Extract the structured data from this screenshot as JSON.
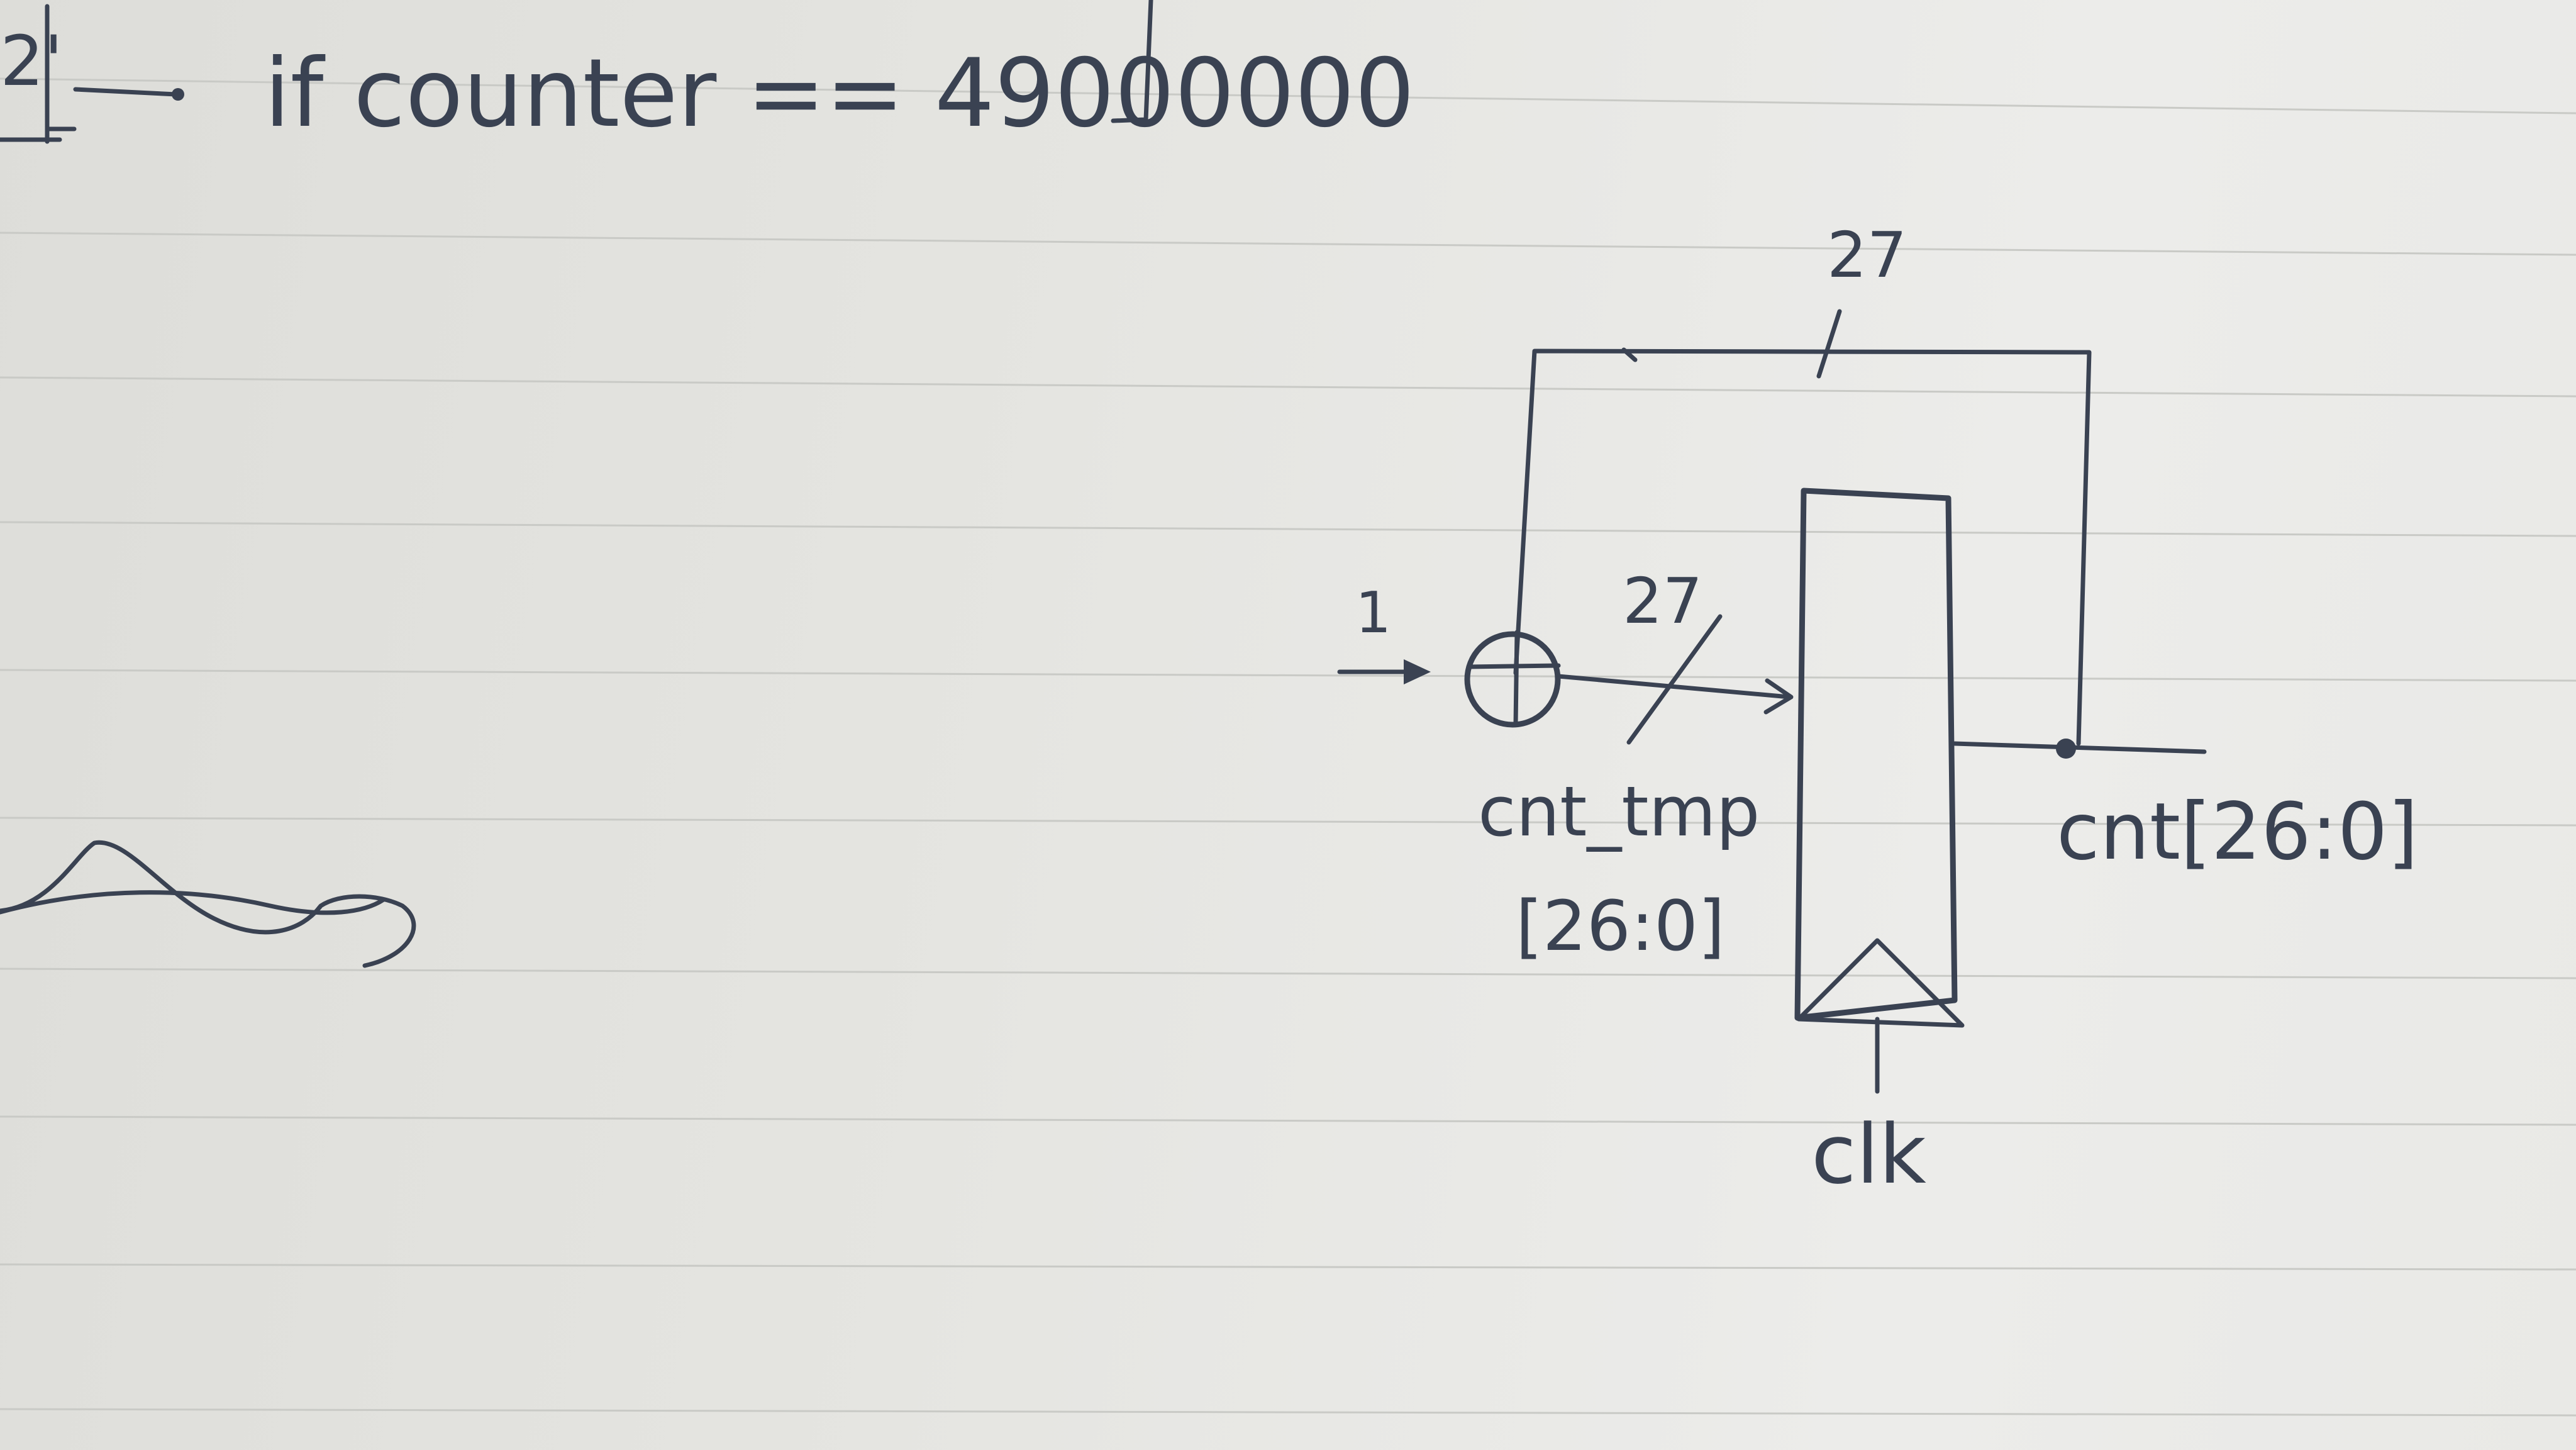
{
  "paper": {
    "background": "#e6e5e1",
    "ruled_line_color": "#c9cac6",
    "ink_color": "#3a4252"
  },
  "top_note": {
    "left_fragment": "2'",
    "condition_text": "if counter == 49000000"
  },
  "diagram": {
    "feedback_width": "27",
    "adder_input": "1",
    "adder_symbol": "⊕",
    "adder_output_width": "27",
    "adder_output_name": "cnt_tmp",
    "adder_output_range": "[26:0]",
    "register_output": "cnt[26:0]",
    "clock": "clk"
  }
}
